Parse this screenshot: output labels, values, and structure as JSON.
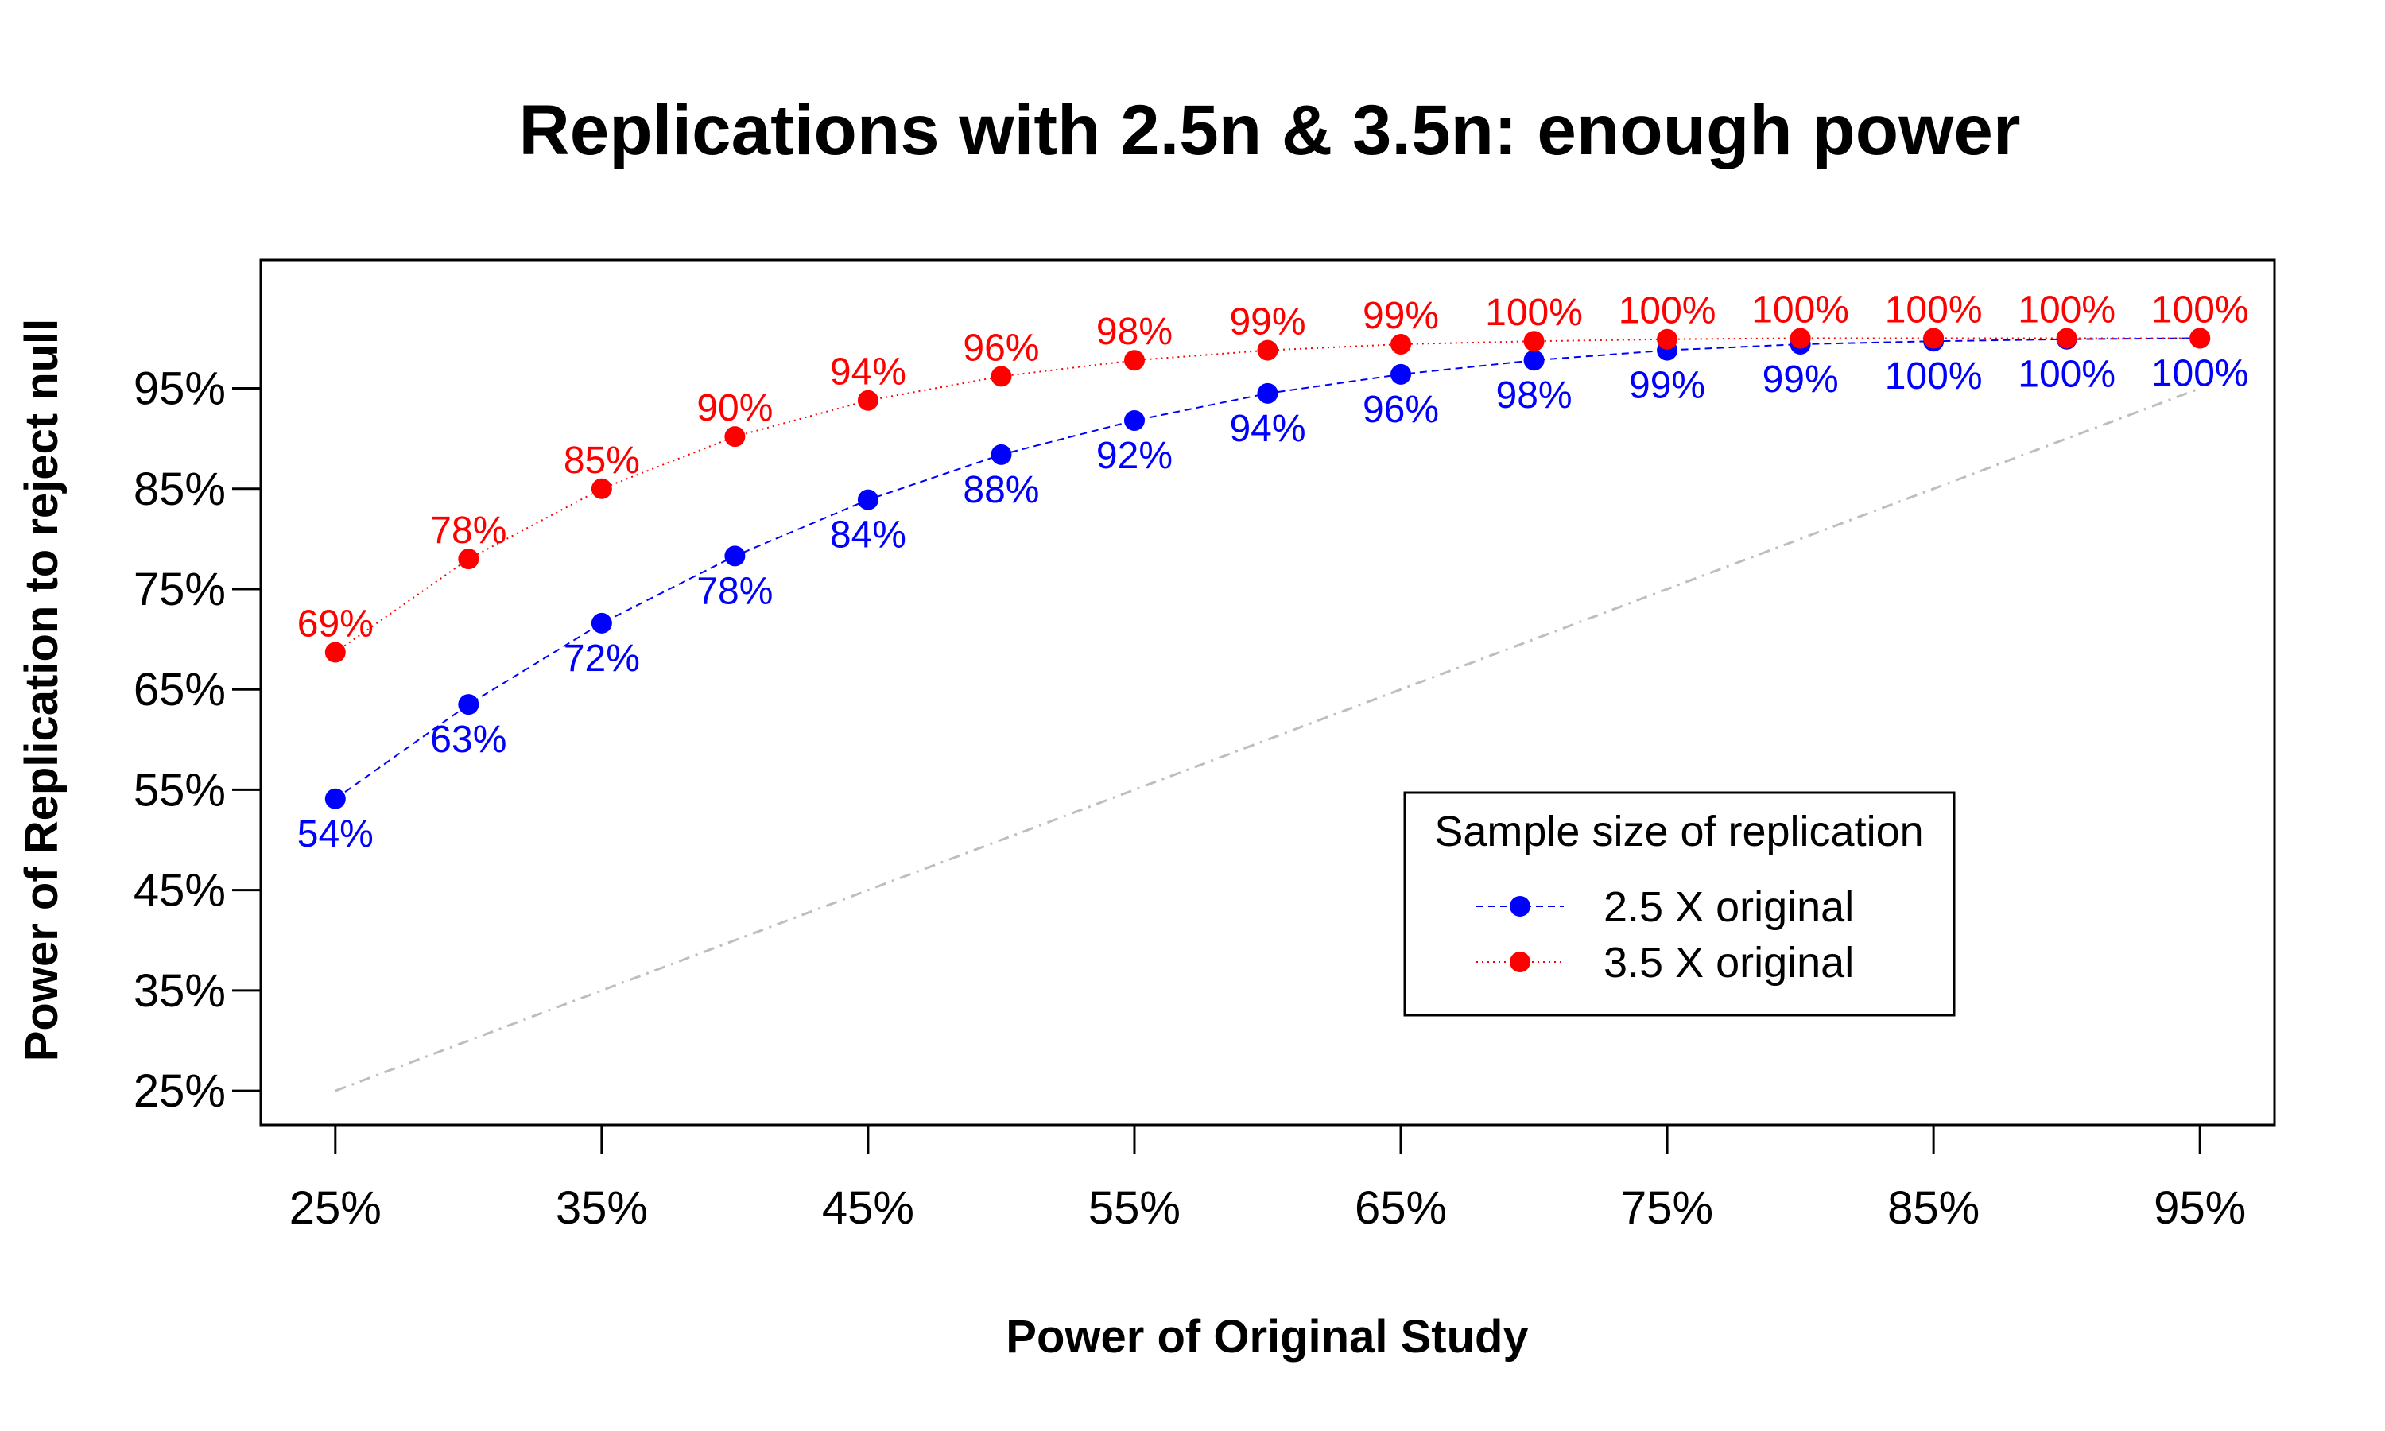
{
  "chart_data": {
    "type": "line",
    "title": "Replications with 2.5n & 3.5n: enough power",
    "xlabel": "Power of Original Study",
    "ylabel": "Power of Replication to reject null",
    "x": [
      25,
      30,
      35,
      40,
      45,
      50,
      55,
      60,
      65,
      70,
      75,
      80,
      85,
      90,
      95
    ],
    "xticks": [
      25,
      35,
      45,
      55,
      65,
      75,
      85,
      95
    ],
    "xtick_labels": [
      "25%",
      "35%",
      "45%",
      "55%",
      "65%",
      "75%",
      "85%",
      "95%"
    ],
    "yticks": [
      25,
      35,
      45,
      55,
      65,
      75,
      85,
      95
    ],
    "ytick_labels": [
      "25%",
      "35%",
      "45%",
      "55%",
      "65%",
      "75%",
      "85%",
      "95%"
    ],
    "xlim": [
      22.2,
      97.8
    ],
    "ylim": [
      21.6,
      107.8
    ],
    "grid": false,
    "legend": {
      "title": "Sample size of replication",
      "position": "lower-right"
    },
    "series": [
      {
        "name": "2.5 X original",
        "color": "#0000ff",
        "line_style": "dashed",
        "label_position": "below",
        "values": [
          54.1,
          63.5,
          71.6,
          78.3,
          83.9,
          88.4,
          91.8,
          94.5,
          96.4,
          97.8,
          98.8,
          99.4,
          99.7,
          99.9,
          100.0
        ],
        "point_labels": [
          "54%",
          "63%",
          "72%",
          "78%",
          "84%",
          "88%",
          "92%",
          "94%",
          "96%",
          "98%",
          "99%",
          "99%",
          "100%",
          "100%",
          "100%"
        ]
      },
      {
        "name": "3.5 X original",
        "color": "#ff0000",
        "line_style": "dotted",
        "label_position": "above",
        "values": [
          68.7,
          78.0,
          85.0,
          90.2,
          93.8,
          96.2,
          97.8,
          98.8,
          99.4,
          99.7,
          99.9,
          100.0,
          100.0,
          100.0,
          100.0
        ],
        "point_labels": [
          "69%",
          "78%",
          "85%",
          "90%",
          "94%",
          "96%",
          "98%",
          "99%",
          "99%",
          "100%",
          "100%",
          "100%",
          "100%",
          "100%",
          "100%"
        ]
      }
    ],
    "reference_line": {
      "from": [
        25,
        25
      ],
      "to": [
        95,
        95
      ],
      "color": "#bebebe",
      "line_style": "dashdot"
    }
  }
}
